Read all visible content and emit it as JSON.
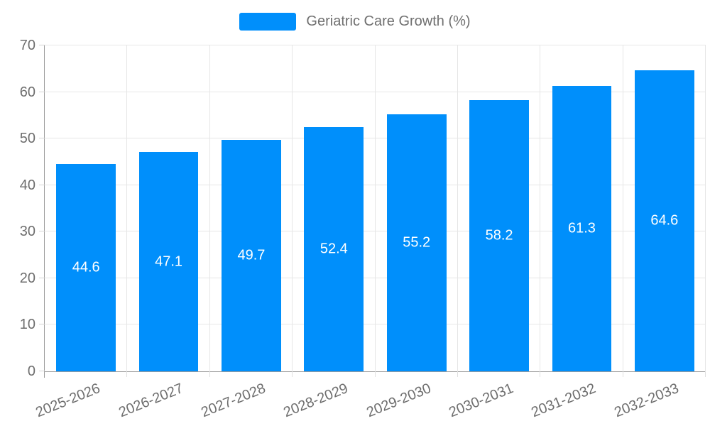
{
  "chart_data": {
    "type": "bar",
    "legend": "Geriatric Care Growth (%)",
    "legend_position": "top",
    "categories": [
      "2025-2026",
      "2026-2027",
      "2027-2028",
      "2028-2029",
      "2029-2030",
      "2030-2031",
      "2031-2032",
      "2032-2033"
    ],
    "values": [
      44.6,
      47.1,
      49.7,
      52.4,
      55.2,
      58.2,
      61.3,
      64.6
    ],
    "value_labels": [
      "44.6",
      "47.1",
      "49.7",
      "52.4",
      "55.2",
      "58.2",
      "61.3",
      "64.6"
    ],
    "xlabel": "",
    "ylabel": "",
    "ylim": [
      0,
      70
    ],
    "ytick_step": 10,
    "ytick_labels": [
      "0",
      "10",
      "20",
      "30",
      "40",
      "50",
      "60",
      "70"
    ],
    "grid": true,
    "bar_color": "#008FFB",
    "bar_value_label_color": "#ffffff",
    "axis_text_color": "#6e6e6e",
    "grid_color": "#e6e6e6",
    "axis_line_color": "#9b9b9b"
  }
}
